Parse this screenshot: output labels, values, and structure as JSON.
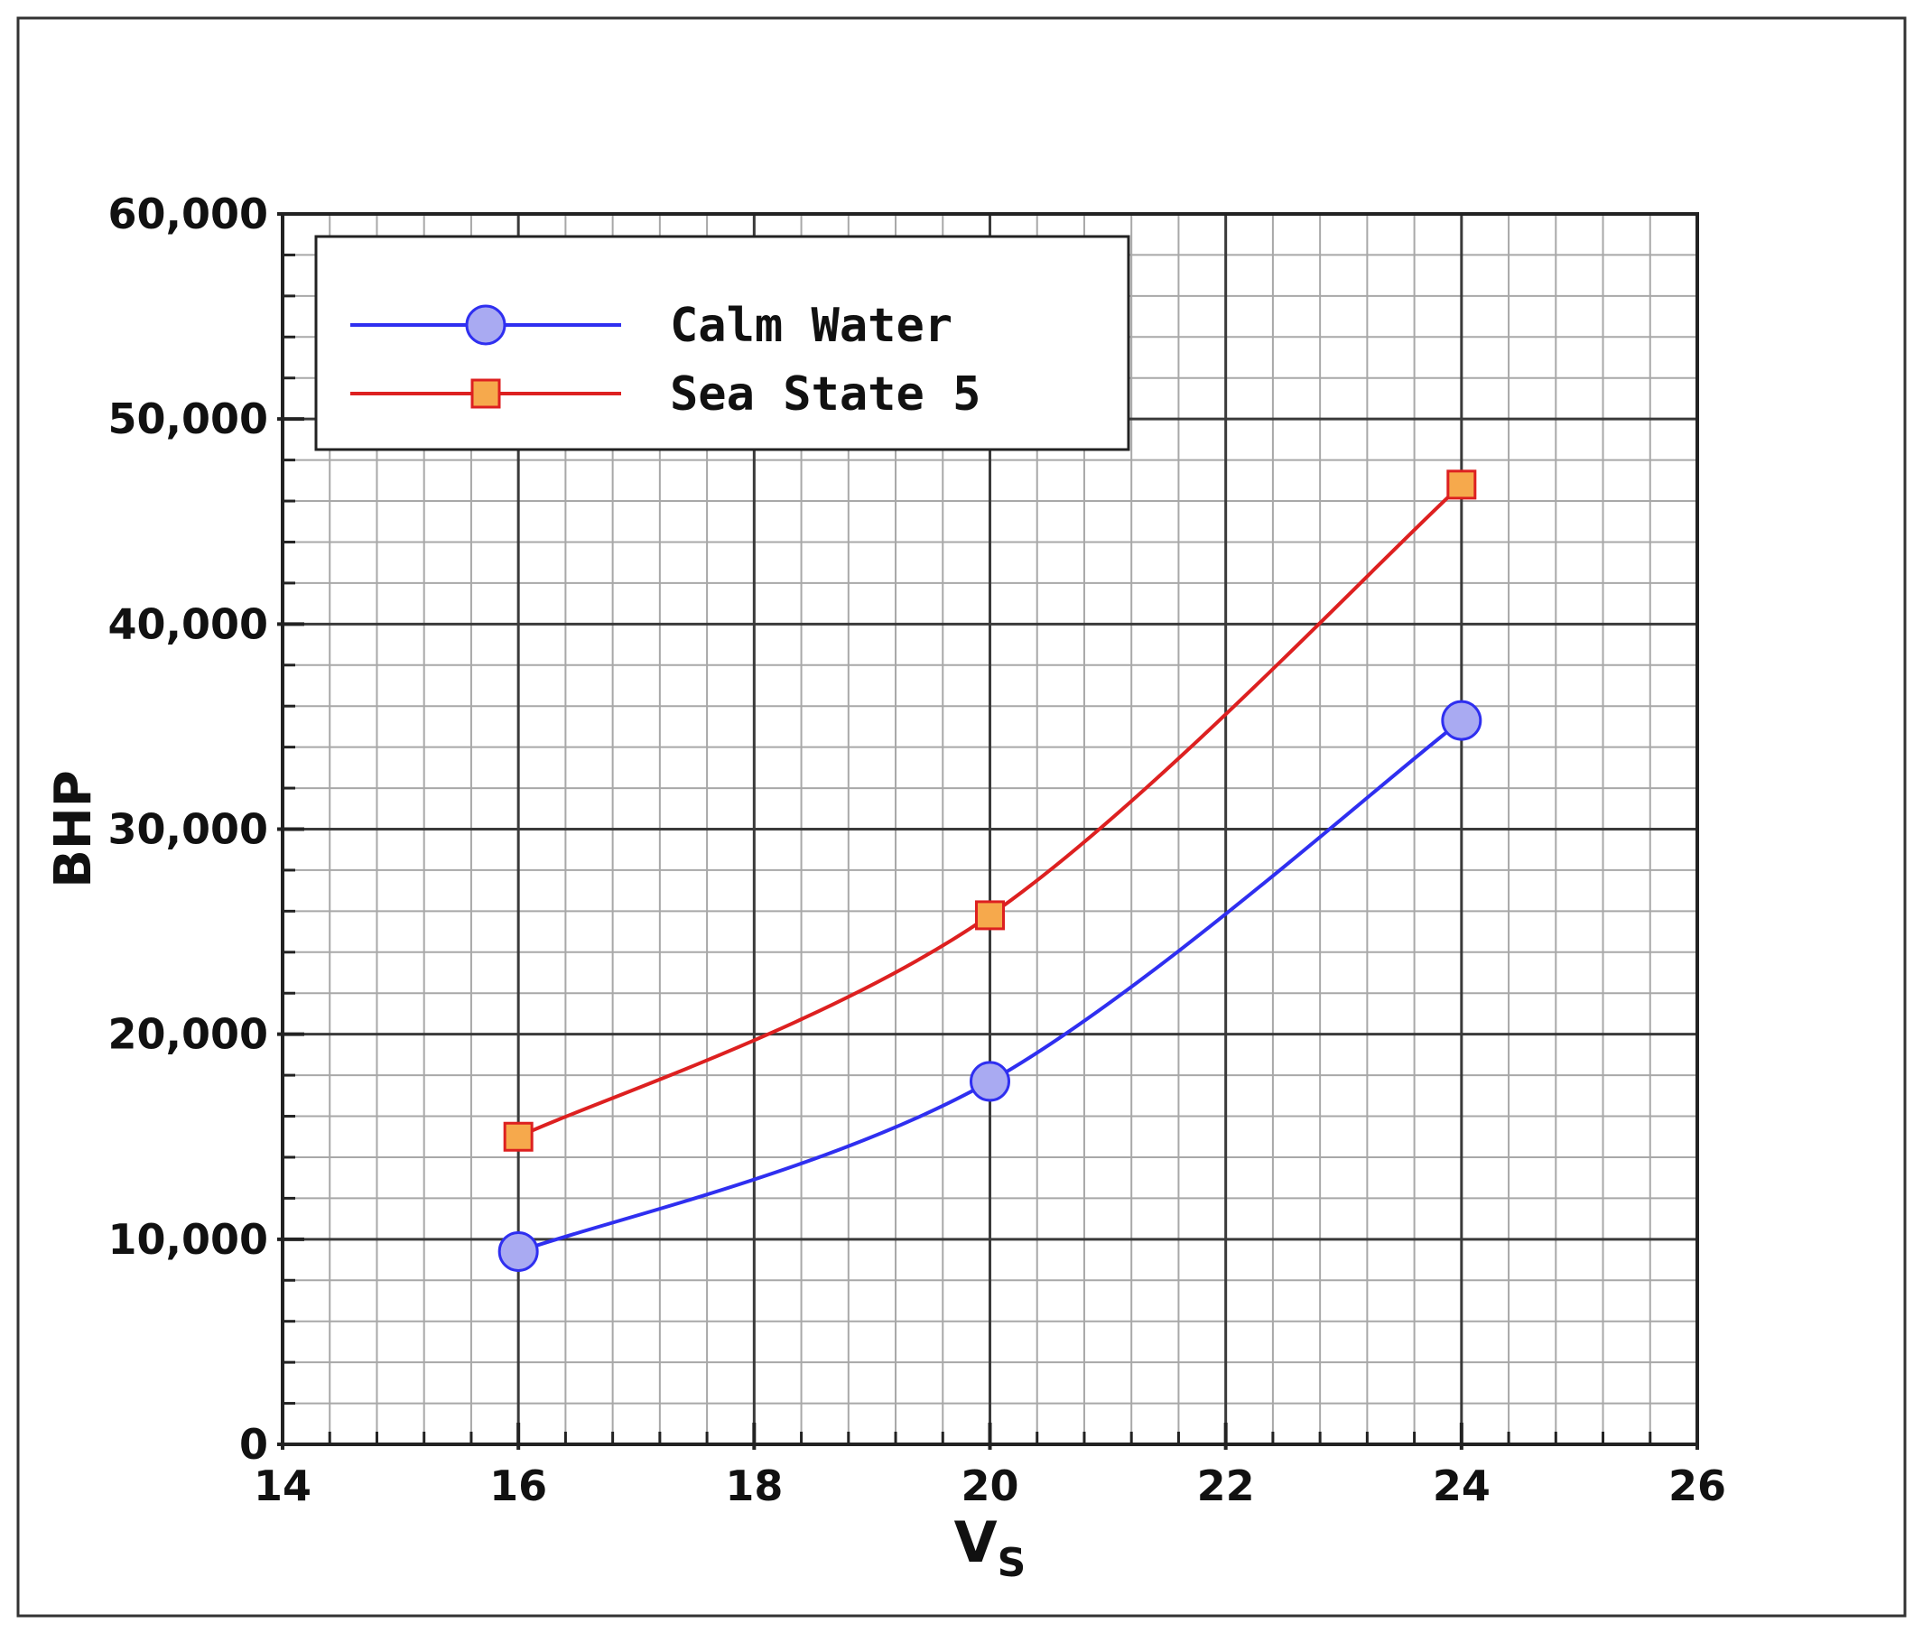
{
  "chart_data": {
    "type": "line",
    "xlabel": "V",
    "xlabel_subscript": "S",
    "ylabel": "BHP",
    "xlim": [
      14,
      26
    ],
    "ylim": [
      0,
      60000
    ],
    "x_ticks": [
      14,
      16,
      18,
      20,
      22,
      24,
      26
    ],
    "y_ticks": [
      0,
      10000,
      20000,
      30000,
      40000,
      50000,
      60000
    ],
    "x_tick_labels": [
      "14",
      "16",
      "18",
      "20",
      "22",
      "24",
      "26"
    ],
    "y_tick_labels": [
      "0",
      "10,000",
      "20,000",
      "30,000",
      "40,000",
      "50,000",
      "60,000"
    ],
    "x_minor_step": 0.4,
    "y_minor_step": 2000,
    "grid": true,
    "legend_position": "top-left",
    "series": [
      {
        "name": "Calm Water",
        "color": "#2f2ff0",
        "marker": "circle",
        "marker_fill": "#a9aaf2",
        "x": [
          16,
          20,
          24
        ],
        "y": [
          9400,
          17700,
          35300
        ]
      },
      {
        "name": "Sea State 5",
        "color": "#dd2020",
        "marker": "square",
        "marker_fill": "#f6a94c",
        "x": [
          16,
          20,
          24
        ],
        "y": [
          15000,
          25800,
          46800
        ]
      }
    ]
  }
}
